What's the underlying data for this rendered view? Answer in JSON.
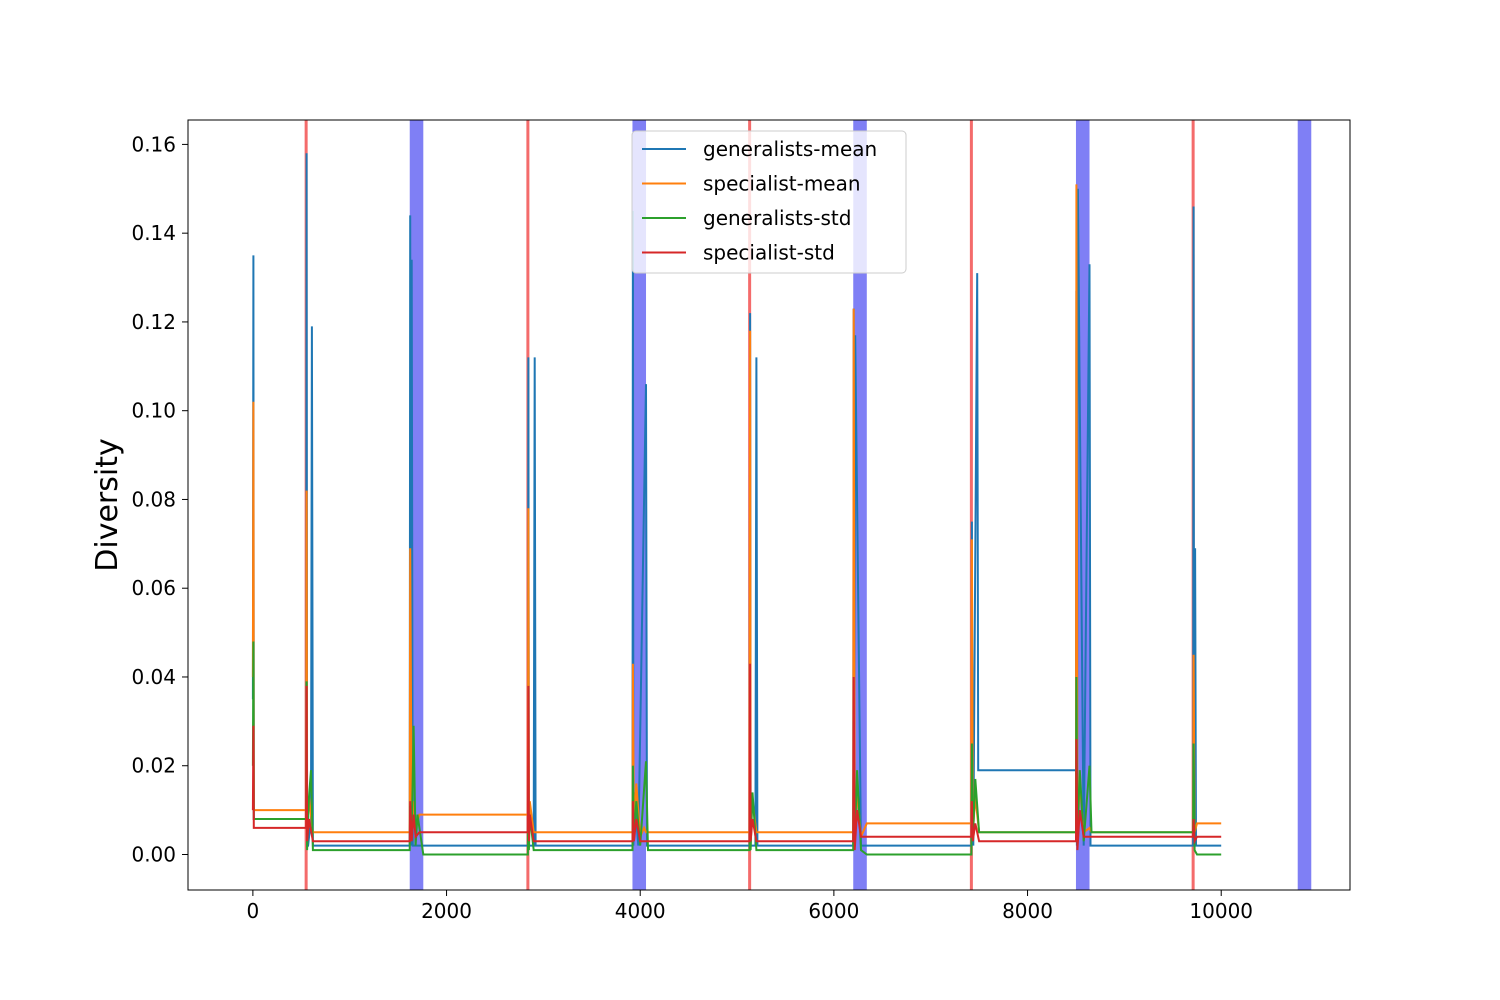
{
  "chart_data": {
    "type": "line",
    "title": "",
    "xlabel": "",
    "ylabel": "Diversity",
    "xlim": [
      -670,
      11330
    ],
    "ylim": [
      -0.008,
      0.1655
    ],
    "x_ticks": [
      0,
      2000,
      4000,
      6000,
      8000,
      10000
    ],
    "x_tick_labels": [
      "0",
      "2000",
      "4000",
      "6000",
      "8000",
      "10000"
    ],
    "y_ticks": [
      0.0,
      0.02,
      0.04,
      0.06,
      0.08,
      0.1,
      0.12,
      0.14,
      0.16
    ],
    "y_tick_labels": [
      "0.00",
      "0.02",
      "0.04",
      "0.06",
      "0.08",
      "0.10",
      "0.12",
      "0.14",
      "0.16"
    ],
    "grid": false,
    "legend_position": "top-center",
    "red_vertical_lines": [
      550,
      2840,
      5130,
      7420,
      9710
    ],
    "red_line_color": "#f46b6b",
    "blue_bands": [
      [
        1620,
        1760
      ],
      [
        3920,
        4060
      ],
      [
        6200,
        6340
      ],
      [
        8500,
        8640
      ],
      [
        10790,
        10930
      ]
    ],
    "blue_band_color": "#7f7ff5",
    "series": [
      {
        "name": "generalists-mean",
        "color": "#1f77b4",
        "x": [
          0,
          5,
          10,
          550,
          555,
          560,
          570,
          600,
          610,
          620,
          1620,
          1625,
          1630,
          1640,
          1650,
          1700,
          1760,
          1770,
          2840,
          2845,
          2850,
          2860,
          2900,
          2910,
          2920,
          3920,
          3925,
          3930,
          3940,
          3980,
          4060,
          4070,
          5130,
          5135,
          5140,
          5150,
          5190,
          5200,
          5210,
          6200,
          6205,
          6210,
          6220,
          6280,
          6340,
          6350,
          7420,
          7425,
          7430,
          7440,
          7480,
          7490,
          7500,
          8500,
          8505,
          8510,
          8520,
          8580,
          8640,
          8650,
          9710,
          9715,
          9720,
          9730,
          9740,
          9750,
          10000
        ],
        "values": [
          0.035,
          0.135,
          0.008,
          0.008,
          0.158,
          0.002,
          0.002,
          0.008,
          0.119,
          0.002,
          0.002,
          0.144,
          0.002,
          0.134,
          0.002,
          0.002,
          0.002,
          0.002,
          0.002,
          0.112,
          0.002,
          0.002,
          0.002,
          0.112,
          0.002,
          0.002,
          0.145,
          0.002,
          0.014,
          0.002,
          0.106,
          0.002,
          0.002,
          0.122,
          0.002,
          0.002,
          0.002,
          0.112,
          0.002,
          0.002,
          0.123,
          0.002,
          0.117,
          0.002,
          0.002,
          0.002,
          0.002,
          0.075,
          0.005,
          0.002,
          0.131,
          0.019,
          0.019,
          0.019,
          0.127,
          0.002,
          0.15,
          0.002,
          0.133,
          0.002,
          0.002,
          0.146,
          0.002,
          0.069,
          0.002,
          0.002,
          0.002
        ]
      },
      {
        "name": "specialist-mean",
        "color": "#ff7f0e",
        "x": [
          0,
          5,
          10,
          550,
          555,
          560,
          580,
          620,
          1620,
          1625,
          1640,
          1660,
          1680,
          1720,
          1760,
          1770,
          2840,
          2845,
          2850,
          2860,
          2900,
          2920,
          3920,
          3925,
          3935,
          3960,
          4000,
          4040,
          4060,
          4080,
          5130,
          5135,
          5140,
          5160,
          5200,
          6200,
          6205,
          6215,
          6240,
          6280,
          6340,
          6360,
          7420,
          7425,
          7435,
          7460,
          7500,
          7520,
          8500,
          8505,
          8515,
          8540,
          8580,
          8640,
          8660,
          9710,
          9715,
          9725,
          9750,
          10000
        ],
        "values": [
          0.04,
          0.102,
          0.01,
          0.01,
          0.082,
          0.005,
          0.013,
          0.005,
          0.005,
          0.069,
          0.005,
          0.012,
          0.006,
          0.009,
          0.009,
          0.009,
          0.009,
          0.078,
          0.005,
          0.012,
          0.005,
          0.005,
          0.005,
          0.043,
          0.005,
          0.016,
          0.004,
          0.006,
          0.005,
          0.005,
          0.005,
          0.118,
          0.005,
          0.012,
          0.005,
          0.005,
          0.123,
          0.005,
          0.014,
          0.004,
          0.007,
          0.007,
          0.007,
          0.071,
          0.005,
          0.013,
          0.005,
          0.005,
          0.005,
          0.151,
          0.005,
          0.016,
          0.005,
          0.006,
          0.005,
          0.005,
          0.045,
          0.005,
          0.007,
          0.007
        ]
      },
      {
        "name": "generalists-std",
        "color": "#2ca02c",
        "x": [
          0,
          5,
          10,
          550,
          555,
          560,
          580,
          600,
          620,
          1620,
          1625,
          1640,
          1660,
          1680,
          1700,
          1760,
          1770,
          2840,
          2845,
          2850,
          2860,
          2900,
          2920,
          3920,
          3925,
          3935,
          3960,
          4000,
          4060,
          4080,
          5130,
          5135,
          5140,
          5160,
          5200,
          6200,
          6205,
          6215,
          6240,
          6280,
          6340,
          6360,
          7420,
          7425,
          7435,
          7460,
          7500,
          7520,
          8500,
          8505,
          8515,
          8540,
          8580,
          8640,
          8660,
          9710,
          9715,
          9725,
          9750,
          10000
        ],
        "values": [
          0.02,
          0.048,
          0.008,
          0.008,
          0.039,
          0.001,
          0.013,
          0.019,
          0.001,
          0.001,
          0.011,
          0.004,
          0.029,
          0.002,
          0.009,
          0.0,
          0.0,
          0.0,
          0.02,
          0.001,
          0.009,
          0.001,
          0.001,
          0.001,
          0.02,
          0.003,
          0.012,
          0.002,
          0.021,
          0.001,
          0.001,
          0.019,
          0.001,
          0.014,
          0.001,
          0.001,
          0.03,
          0.002,
          0.019,
          0.001,
          0.0,
          0.0,
          0.0,
          0.025,
          0.003,
          0.017,
          0.005,
          0.005,
          0.005,
          0.04,
          0.004,
          0.019,
          0.003,
          0.02,
          0.005,
          0.005,
          0.025,
          0.001,
          0.0,
          0.0
        ]
      },
      {
        "name": "specialist-std",
        "color": "#d62728",
        "x": [
          0,
          5,
          10,
          550,
          555,
          560,
          580,
          620,
          1620,
          1625,
          1640,
          1660,
          1680,
          1720,
          1760,
          1770,
          2840,
          2845,
          2850,
          2860,
          2900,
          2920,
          3920,
          3925,
          3935,
          3960,
          4000,
          4060,
          4080,
          5130,
          5135,
          5140,
          5160,
          5200,
          6200,
          6205,
          6215,
          6240,
          6280,
          6340,
          6360,
          7420,
          7425,
          7435,
          7460,
          7500,
          7520,
          8500,
          8505,
          8515,
          8540,
          8580,
          8640,
          8660,
          9710,
          9715,
          9725,
          9750,
          10000
        ],
        "values": [
          0.01,
          0.029,
          0.006,
          0.006,
          0.038,
          0.003,
          0.008,
          0.003,
          0.003,
          0.012,
          0.003,
          0.009,
          0.004,
          0.005,
          0.005,
          0.005,
          0.005,
          0.038,
          0.003,
          0.009,
          0.003,
          0.003,
          0.003,
          0.012,
          0.003,
          0.008,
          0.003,
          0.003,
          0.003,
          0.003,
          0.043,
          0.003,
          0.008,
          0.003,
          0.003,
          0.04,
          0.001,
          0.01,
          0.004,
          0.004,
          0.004,
          0.004,
          0.012,
          0.003,
          0.007,
          0.003,
          0.003,
          0.003,
          0.026,
          0.001,
          0.01,
          0.004,
          0.004,
          0.004,
          0.004,
          0.008,
          0.003,
          0.004,
          0.004
        ]
      }
    ]
  }
}
